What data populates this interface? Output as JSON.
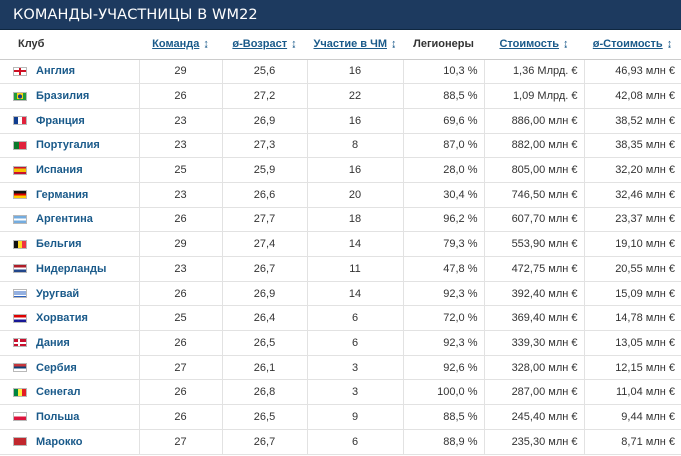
{
  "header": {
    "title": "КОМАНДЫ-УЧАСТНИЦЫ В WM22"
  },
  "colors": {
    "header_bg": "#1d3a5f",
    "link": "#1a5a8a"
  },
  "columns": [
    {
      "label": "Клуб",
      "sortable": false
    },
    {
      "label": "Команда",
      "sortable": true
    },
    {
      "label": "ø-Возраст",
      "sortable": true
    },
    {
      "label": "Участие в ЧМ",
      "sortable": true
    },
    {
      "label": "Легионеры",
      "sortable": false
    },
    {
      "label": "Стоимость",
      "sortable": true
    },
    {
      "label": "ø-Стоимость",
      "sortable": true
    }
  ],
  "rows": [
    {
      "flag": "england-flag-icon",
      "club": "Англия",
      "squad": "29",
      "age": "25,6",
      "wc": "16",
      "foreigners": "10,3 %",
      "value": "1,36 Млрд. €",
      "avg_value": "46,93 млн €"
    },
    {
      "flag": "brazil-flag-icon",
      "club": "Бразилия",
      "squad": "26",
      "age": "27,2",
      "wc": "22",
      "foreigners": "88,5 %",
      "value": "1,09 Млрд. €",
      "avg_value": "42,08 млн €"
    },
    {
      "flag": "france-flag-icon",
      "club": "Франция",
      "squad": "23",
      "age": "26,9",
      "wc": "16",
      "foreigners": "69,6 %",
      "value": "886,00 млн €",
      "avg_value": "38,52 млн €"
    },
    {
      "flag": "portugal-flag-icon",
      "club": "Португалия",
      "squad": "23",
      "age": "27,3",
      "wc": "8",
      "foreigners": "87,0 %",
      "value": "882,00 млн €",
      "avg_value": "38,35 млн €"
    },
    {
      "flag": "spain-flag-icon",
      "club": "Испания",
      "squad": "25",
      "age": "25,9",
      "wc": "16",
      "foreigners": "28,0 %",
      "value": "805,00 млн €",
      "avg_value": "32,20 млн €"
    },
    {
      "flag": "germany-flag-icon",
      "club": "Германия",
      "squad": "23",
      "age": "26,6",
      "wc": "20",
      "foreigners": "30,4 %",
      "value": "746,50 млн €",
      "avg_value": "32,46 млн €"
    },
    {
      "flag": "argentina-flag-icon",
      "club": "Аргентина",
      "squad": "26",
      "age": "27,7",
      "wc": "18",
      "foreigners": "96,2 %",
      "value": "607,70 млн €",
      "avg_value": "23,37 млн €"
    },
    {
      "flag": "belgium-flag-icon",
      "club": "Бельгия",
      "squad": "29",
      "age": "27,4",
      "wc": "14",
      "foreigners": "79,3 %",
      "value": "553,90 млн €",
      "avg_value": "19,10 млн €"
    },
    {
      "flag": "netherlands-flag-icon",
      "club": "Нидерланды",
      "squad": "23",
      "age": "26,7",
      "wc": "11",
      "foreigners": "47,8 %",
      "value": "472,75 млн €",
      "avg_value": "20,55 млн €"
    },
    {
      "flag": "uruguay-flag-icon",
      "club": "Уругвай",
      "squad": "26",
      "age": "26,9",
      "wc": "14",
      "foreigners": "92,3 %",
      "value": "392,40 млн €",
      "avg_value": "15,09 млн €"
    },
    {
      "flag": "croatia-flag-icon",
      "club": "Хорватия",
      "squad": "25",
      "age": "26,4",
      "wc": "6",
      "foreigners": "72,0 %",
      "value": "369,40 млн €",
      "avg_value": "14,78 млн €"
    },
    {
      "flag": "denmark-flag-icon",
      "club": "Дания",
      "squad": "26",
      "age": "26,5",
      "wc": "6",
      "foreigners": "92,3 %",
      "value": "339,30 млн €",
      "avg_value": "13,05 млн €"
    },
    {
      "flag": "serbia-flag-icon",
      "club": "Сербия",
      "squad": "27",
      "age": "26,1",
      "wc": "3",
      "foreigners": "92,6 %",
      "value": "328,00 млн €",
      "avg_value": "12,15 млн €"
    },
    {
      "flag": "senegal-flag-icon",
      "club": "Сенегал",
      "squad": "26",
      "age": "26,8",
      "wc": "3",
      "foreigners": "100,0 %",
      "value": "287,00 млн €",
      "avg_value": "11,04 млн €"
    },
    {
      "flag": "poland-flag-icon",
      "club": "Польша",
      "squad": "26",
      "age": "26,5",
      "wc": "9",
      "foreigners": "88,5 %",
      "value": "245,40 млн €",
      "avg_value": "9,44 млн €"
    },
    {
      "flag": "morocco-flag-icon",
      "club": "Марокко",
      "squad": "27",
      "age": "26,7",
      "wc": "6",
      "foreigners": "88,9 %",
      "value": "235,30 млн €",
      "avg_value": "8,71 млн €"
    }
  ]
}
